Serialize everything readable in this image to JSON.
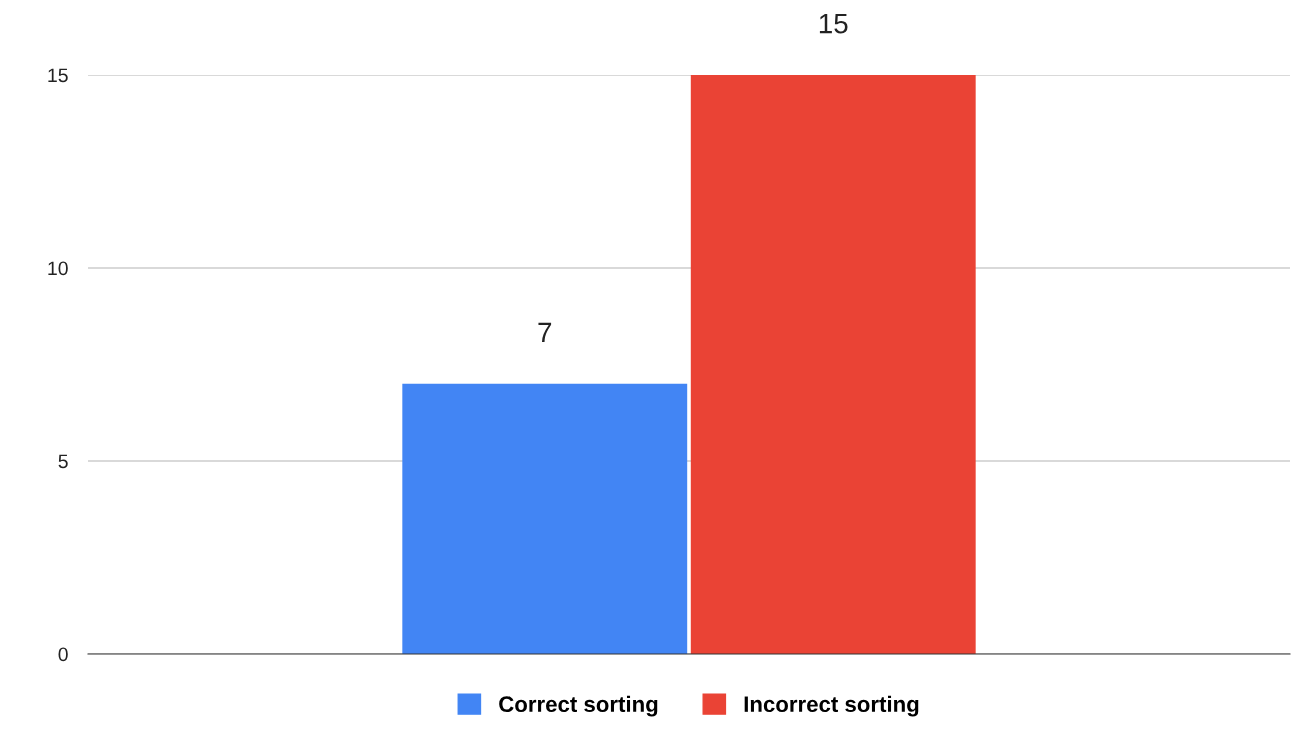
{
  "chart_data": {
    "type": "bar",
    "categories": [
      null
    ],
    "series": [
      {
        "name": "Correct sorting",
        "color": "#4285f4",
        "values": [
          7
        ]
      },
      {
        "name": "Incorrect sorting",
        "color": "#ea4335",
        "values": [
          15
        ]
      }
    ],
    "ylim": [
      0,
      15
    ],
    "yticks": [
      0,
      5,
      10,
      15
    ],
    "grid": "y",
    "legend": "bottom",
    "data_labels": true
  }
}
